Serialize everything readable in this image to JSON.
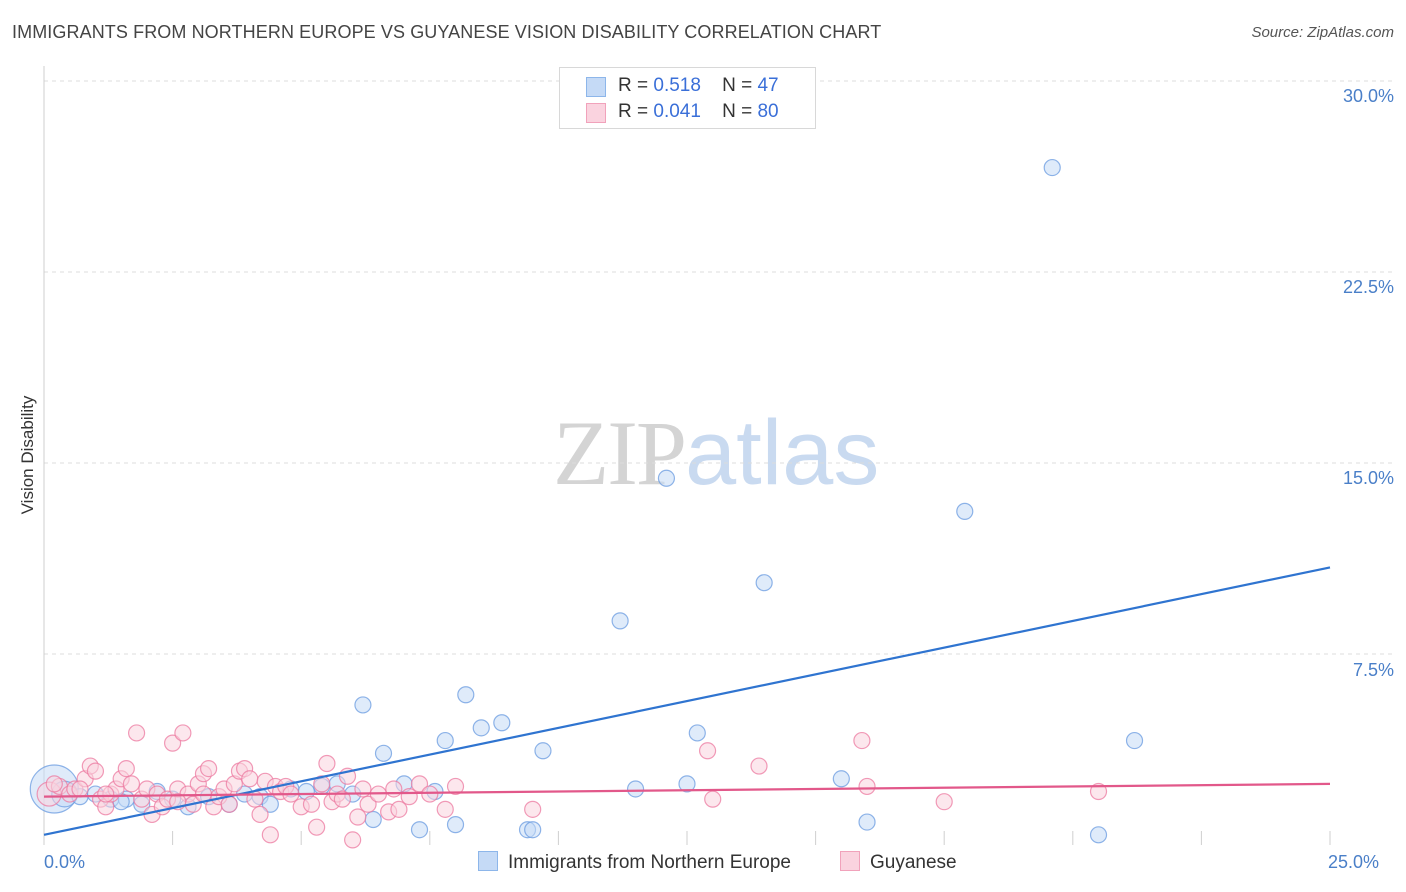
{
  "title": "IMMIGRANTS FROM NORTHERN EUROPE VS GUYANESE VISION DISABILITY CORRELATION CHART",
  "source": "Source: ZipAtlas.com",
  "watermark": {
    "zip": "ZIP",
    "atlas": "atlas"
  },
  "legend": {
    "rows": [
      {
        "r_label": "R =",
        "r_value": "0.518",
        "n_label": "N =",
        "n_value": "47",
        "color": "#8db6ea",
        "fill": "#c5daf6"
      },
      {
        "r_label": "R =",
        "r_value": "0.041",
        "n_label": "N =",
        "n_value": "80",
        "color": "#f1a2bb",
        "fill": "#fad3df"
      }
    ]
  },
  "bottom_legend": [
    {
      "label": "Immigrants from Northern Europe",
      "color": "#8db6ea",
      "fill": "#c5daf6"
    },
    {
      "label": "Guyanese",
      "color": "#f1a2bb",
      "fill": "#fad3df"
    }
  ],
  "chart_data": {
    "type": "scatter",
    "title": "IMMIGRANTS FROM NORTHERN EUROPE VS GUYANESE VISION DISABILITY CORRELATION CHART",
    "xlabel": "",
    "ylabel": "Vision Disability",
    "xlim": [
      0,
      25
    ],
    "ylim": [
      0,
      30
    ],
    "x_tick_labels": [
      "0.0%",
      "25.0%"
    ],
    "y_ticks": [
      7.5,
      15.0,
      22.5,
      30.0
    ],
    "y_tick_labels": [
      "7.5%",
      "15.0%",
      "22.5%",
      "30.0%"
    ],
    "grid": "horizontal dashed",
    "series": [
      {
        "name": "Immigrants from Northern Europe",
        "color": "#6a9be0",
        "fill": "#c5daf6",
        "trend": {
          "x": [
            0,
            25
          ],
          "y": [
            0.4,
            10.9
          ]
        },
        "points": [
          [
            0.2,
            2.2,
            3
          ],
          [
            0.4,
            2.0,
            1.6
          ],
          [
            0.7,
            1.9,
            1
          ],
          [
            1.0,
            2.0,
            1
          ],
          [
            1.3,
            1.8,
            1
          ],
          [
            1.6,
            1.8,
            1
          ],
          [
            1.9,
            1.6,
            1
          ],
          [
            2.2,
            2.1,
            1
          ],
          [
            2.5,
            1.8,
            1
          ],
          [
            2.8,
            1.5,
            1
          ],
          [
            3.2,
            1.9,
            1
          ],
          [
            3.6,
            1.6,
            1
          ],
          [
            3.9,
            2.0,
            1
          ],
          [
            4.2,
            1.9,
            1
          ],
          [
            4.4,
            1.6,
            1
          ],
          [
            4.8,
            2.2,
            1
          ],
          [
            5.1,
            2.1,
            1
          ],
          [
            5.4,
            2.3,
            1
          ],
          [
            5.7,
            2.4,
            1
          ],
          [
            6.0,
            2.0,
            1
          ],
          [
            6.2,
            5.5,
            1
          ],
          [
            6.4,
            1.0,
            1
          ],
          [
            6.6,
            3.6,
            1
          ],
          [
            7.0,
            2.4,
            1
          ],
          [
            7.3,
            0.6,
            1
          ],
          [
            7.6,
            2.1,
            1
          ],
          [
            7.8,
            4.1,
            1
          ],
          [
            8.0,
            0.8,
            1
          ],
          [
            8.2,
            5.9,
            1
          ],
          [
            8.5,
            4.6,
            1
          ],
          [
            8.9,
            4.8,
            1
          ],
          [
            9.4,
            0.6,
            1
          ],
          [
            9.5,
            0.6,
            1
          ],
          [
            9.7,
            3.7,
            1
          ],
          [
            11.2,
            8.8,
            1
          ],
          [
            11.5,
            2.2,
            1
          ],
          [
            12.1,
            14.4,
            1
          ],
          [
            12.5,
            2.4,
            1
          ],
          [
            12.7,
            4.4,
            1
          ],
          [
            14.0,
            10.3,
            1
          ],
          [
            15.5,
            2.6,
            1
          ],
          [
            16.0,
            0.9,
            1
          ],
          [
            17.9,
            13.1,
            1
          ],
          [
            19.6,
            26.6,
            1
          ],
          [
            20.5,
            0.4,
            1
          ],
          [
            21.2,
            4.1,
            1
          ],
          [
            1.5,
            1.7,
            1
          ]
        ]
      },
      {
        "name": "Guyanese",
        "color": "#ec7aa0",
        "fill": "#fad3df",
        "trend": {
          "x": [
            0,
            25
          ],
          "y": [
            1.9,
            2.4
          ]
        },
        "points": [
          [
            0.1,
            2.0,
            1.5
          ],
          [
            0.3,
            2.3,
            1
          ],
          [
            0.5,
            2.0,
            1
          ],
          [
            0.6,
            2.2,
            1
          ],
          [
            0.8,
            2.6,
            1
          ],
          [
            0.9,
            3.1,
            1
          ],
          [
            1.0,
            2.9,
            1
          ],
          [
            1.1,
            1.8,
            1
          ],
          [
            1.2,
            1.5,
            1
          ],
          [
            1.3,
            2.0,
            1
          ],
          [
            1.4,
            2.2,
            1
          ],
          [
            1.5,
            2.6,
            1
          ],
          [
            1.6,
            3.0,
            1
          ],
          [
            1.7,
            2.4,
            1
          ],
          [
            1.8,
            4.4,
            1
          ],
          [
            1.9,
            1.8,
            1
          ],
          [
            2.0,
            2.2,
            1
          ],
          [
            2.1,
            1.2,
            1
          ],
          [
            2.2,
            2.0,
            1
          ],
          [
            2.3,
            1.5,
            1
          ],
          [
            2.4,
            1.8,
            1
          ],
          [
            2.5,
            4.0,
            1
          ],
          [
            2.6,
            2.2,
            1
          ],
          [
            2.7,
            4.4,
            1
          ],
          [
            2.8,
            2.0,
            1
          ],
          [
            2.9,
            1.6,
            1
          ],
          [
            3.0,
            2.4,
            1
          ],
          [
            3.1,
            2.8,
            1
          ],
          [
            3.2,
            3.0,
            1
          ],
          [
            3.3,
            1.5,
            1
          ],
          [
            3.4,
            1.9,
            1
          ],
          [
            3.5,
            2.2,
            1
          ],
          [
            3.6,
            1.6,
            1
          ],
          [
            3.7,
            2.4,
            1
          ],
          [
            3.8,
            2.9,
            1
          ],
          [
            3.9,
            3.0,
            1
          ],
          [
            4.0,
            2.6,
            1
          ],
          [
            4.1,
            1.8,
            1
          ],
          [
            4.2,
            1.2,
            1
          ],
          [
            4.3,
            2.5,
            1
          ],
          [
            4.4,
            0.4,
            1
          ],
          [
            4.5,
            2.3,
            1
          ],
          [
            4.6,
            2.1,
            1
          ],
          [
            4.7,
            2.3,
            1
          ],
          [
            4.8,
            2.0,
            1
          ],
          [
            5.0,
            1.5,
            1
          ],
          [
            5.2,
            1.6,
            1
          ],
          [
            5.3,
            0.7,
            1
          ],
          [
            5.4,
            2.4,
            1
          ],
          [
            5.5,
            3.2,
            1
          ],
          [
            5.6,
            1.7,
            1
          ],
          [
            5.7,
            2.0,
            1
          ],
          [
            5.8,
            1.8,
            1
          ],
          [
            5.9,
            2.7,
            1
          ],
          [
            6.0,
            0.2,
            1
          ],
          [
            6.1,
            1.1,
            1
          ],
          [
            6.2,
            2.2,
            1
          ],
          [
            6.3,
            1.6,
            1
          ],
          [
            6.5,
            2.0,
            1
          ],
          [
            6.7,
            1.3,
            1
          ],
          [
            6.8,
            2.2,
            1
          ],
          [
            6.9,
            1.4,
            1
          ],
          [
            7.1,
            1.9,
            1
          ],
          [
            7.3,
            2.4,
            1
          ],
          [
            7.5,
            2.0,
            1
          ],
          [
            7.8,
            1.4,
            1
          ],
          [
            8.0,
            2.3,
            1
          ],
          [
            9.5,
            1.4,
            1
          ],
          [
            12.9,
            3.7,
            1
          ],
          [
            13.0,
            1.8,
            1
          ],
          [
            13.9,
            3.1,
            1
          ],
          [
            15.9,
            4.1,
            1
          ],
          [
            16.0,
            2.3,
            1
          ],
          [
            17.5,
            1.7,
            1
          ],
          [
            20.5,
            2.1,
            1
          ],
          [
            0.2,
            2.4,
            1
          ],
          [
            0.7,
            2.2,
            1
          ],
          [
            1.2,
            2.0,
            1
          ],
          [
            2.6,
            1.7,
            1
          ],
          [
            3.1,
            2.0,
            1
          ]
        ]
      }
    ]
  }
}
